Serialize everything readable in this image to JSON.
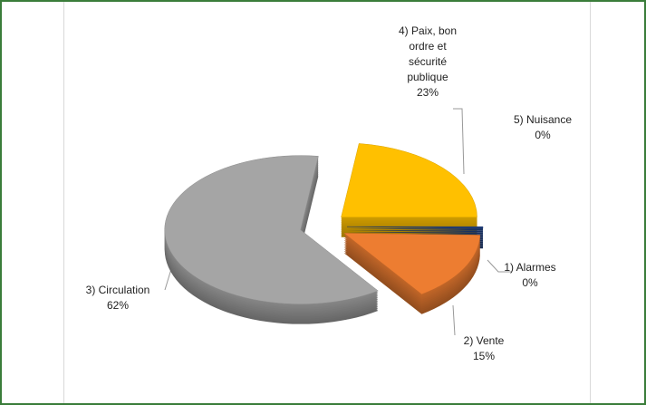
{
  "chart_data": {
    "type": "pie",
    "categories": [
      "1) Alarmes",
      "2) Vente",
      "3) Circulation",
      "4) Paix, bon ordre et sécurité publique",
      "5) Nuisance"
    ],
    "values": [
      0.4,
      15,
      62,
      23,
      0
    ],
    "value_labels": [
      "0%",
      "15%",
      "62%",
      "23%",
      "0%"
    ],
    "colors": [
      "#1f3d7a",
      "#ed7d31",
      "#a5a5a5",
      "#ffc000",
      "#5b9bd5"
    ]
  }
}
